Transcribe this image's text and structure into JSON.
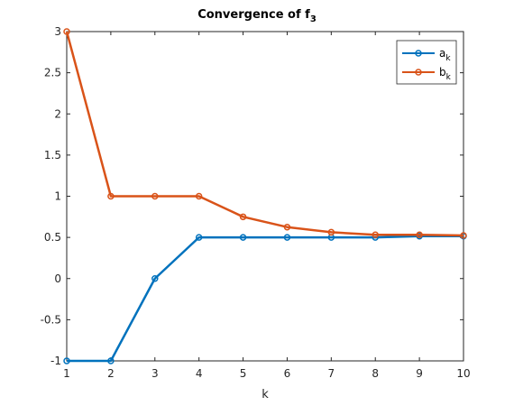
{
  "chart_data": {
    "type": "line",
    "title": "Convergence of f",
    "title_subscript": "3",
    "xlabel": "k",
    "ylabel": "",
    "xlim": [
      1,
      10
    ],
    "ylim": [
      -1,
      3
    ],
    "x_ticks": [
      "1",
      "2",
      "3",
      "4",
      "5",
      "6",
      "7",
      "8",
      "9",
      "10"
    ],
    "y_ticks": [
      "-1",
      "-0.5",
      "0",
      "0.5",
      "1",
      "1.5",
      "2",
      "2.5",
      "3"
    ],
    "x_tick_values": [
      1,
      2,
      3,
      4,
      5,
      6,
      7,
      8,
      9,
      10
    ],
    "y_tick_values": [
      -1,
      -0.5,
      0,
      0.5,
      1,
      1.5,
      2,
      2.5,
      3
    ],
    "grid": false,
    "legend_position": "top-right",
    "x": [
      1,
      2,
      3,
      4,
      5,
      6,
      7,
      8,
      9,
      10
    ],
    "series": [
      {
        "name": "a",
        "name_subscript": "k",
        "color": "#0072BD",
        "values": [
          -1,
          -1,
          0,
          0.5,
          0.5,
          0.5,
          0.5,
          0.5,
          0.5156,
          0.5156
        ]
      },
      {
        "name": "b",
        "name_subscript": "k",
        "color": "#D95319",
        "values": [
          3,
          1,
          1,
          1,
          0.75,
          0.625,
          0.5625,
          0.53125,
          0.53125,
          0.5234
        ]
      }
    ]
  }
}
